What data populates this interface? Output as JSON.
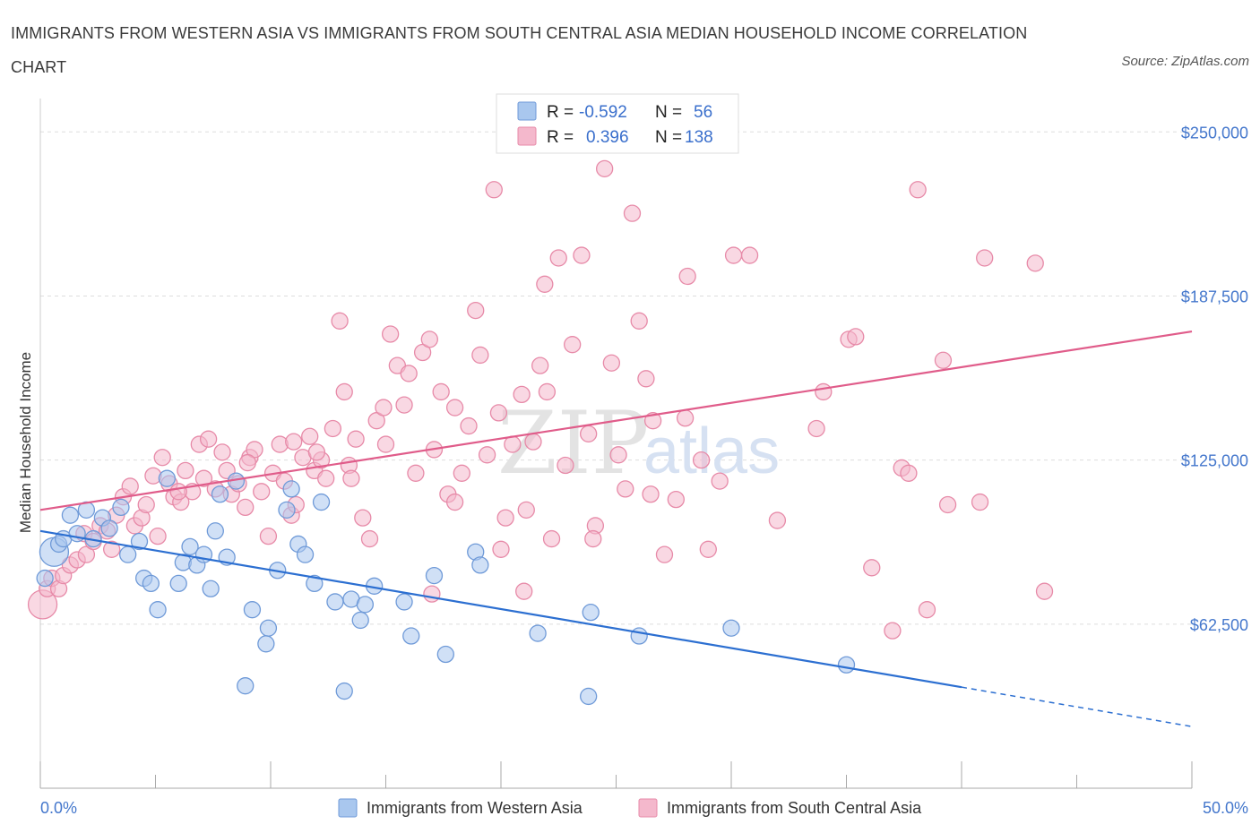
{
  "title": "IMMIGRANTS FROM WESTERN ASIA VS IMMIGRANTS FROM SOUTH CENTRAL ASIA MEDIAN HOUSEHOLD INCOME CORRELATION CHART",
  "source": "Source: ZipAtlas.com",
  "watermark": {
    "zip": "ZIP",
    "atlas": "atlas"
  },
  "colors": {
    "blue_fill": "#a9c7ee",
    "blue_stroke": "#6f9ad8",
    "blue_line": "#2c6fd1",
    "pink_fill": "#f4b8cc",
    "pink_stroke": "#e78aa8",
    "pink_line": "#e05c8a",
    "grid": "#dddddd",
    "axis_label": "#4477cc"
  },
  "legend": {
    "r_label": "R =",
    "n_label": "N =",
    "blue": {
      "r": "-0.592",
      "n": "56"
    },
    "pink": {
      "r": "0.396",
      "n": "138"
    }
  },
  "chart_data": {
    "type": "scatter",
    "title": "IMMIGRANTS FROM WESTERN ASIA VS IMMIGRANTS FROM SOUTH CENTRAL ASIA MEDIAN HOUSEHOLD INCOME CORRELATION CHART",
    "xlabel": "",
    "ylabel": "Median Household Income",
    "xlim": [
      0,
      50
    ],
    "ylim": [
      0,
      260000
    ],
    "x_tick_labels": [
      "0.0%",
      "50.0%"
    ],
    "y_ticks": [
      62500,
      125000,
      187500,
      250000
    ],
    "y_tick_labels": [
      "$62,500",
      "$125,000",
      "$187,500",
      "$250,000"
    ],
    "grid": true,
    "legend_position": "top-center",
    "series": [
      {
        "name": "Immigrants from Western Asia",
        "color": "#a9c7ee",
        "R": -0.592,
        "N": 56,
        "trend": {
          "x_start": 0,
          "y_start": 98000,
          "x_solid_end": 40,
          "y_solid_end": 38500,
          "x_end": 50,
          "y_end": 23500
        },
        "points": [
          [
            0.2,
            80000
          ],
          [
            0.6,
            90000
          ],
          [
            0.8,
            93000
          ],
          [
            1.0,
            95000
          ],
          [
            1.3,
            104000
          ],
          [
            1.6,
            97000
          ],
          [
            2.0,
            106000
          ],
          [
            2.3,
            95000
          ],
          [
            2.7,
            103000
          ],
          [
            3.0,
            99000
          ],
          [
            3.5,
            107000
          ],
          [
            3.8,
            89000
          ],
          [
            4.3,
            94000
          ],
          [
            4.5,
            80000
          ],
          [
            4.8,
            78000
          ],
          [
            5.1,
            68000
          ],
          [
            5.5,
            118000
          ],
          [
            6.0,
            78000
          ],
          [
            6.2,
            86000
          ],
          [
            6.5,
            92000
          ],
          [
            6.8,
            85000
          ],
          [
            7.1,
            89000
          ],
          [
            7.4,
            76000
          ],
          [
            7.6,
            98000
          ],
          [
            7.8,
            112000
          ],
          [
            8.1,
            88000
          ],
          [
            8.5,
            117000
          ],
          [
            8.9,
            39000
          ],
          [
            9.2,
            68000
          ],
          [
            9.8,
            55000
          ],
          [
            9.9,
            61000
          ],
          [
            10.3,
            83000
          ],
          [
            10.7,
            106000
          ],
          [
            10.9,
            114000
          ],
          [
            11.2,
            93000
          ],
          [
            11.5,
            89000
          ],
          [
            11.9,
            78000
          ],
          [
            12.2,
            109000
          ],
          [
            12.8,
            71000
          ],
          [
            13.2,
            37000
          ],
          [
            13.5,
            72000
          ],
          [
            13.9,
            64000
          ],
          [
            14.1,
            70000
          ],
          [
            14.5,
            77000
          ],
          [
            15.8,
            71000
          ],
          [
            16.1,
            58000
          ],
          [
            17.1,
            81000
          ],
          [
            17.6,
            51000
          ],
          [
            18.9,
            90000
          ],
          [
            19.1,
            85000
          ],
          [
            21.6,
            59000
          ],
          [
            23.8,
            35000
          ],
          [
            23.9,
            67000
          ],
          [
            26.0,
            58000
          ],
          [
            30.0,
            61000
          ],
          [
            35.0,
            47000
          ]
        ]
      },
      {
        "name": "Immigrants from South Central Asia",
        "color": "#f4b8cc",
        "R": 0.396,
        "N": 138,
        "trend": {
          "x_start": 0,
          "y_start": 106000,
          "x_end": 50,
          "y_end": 174000
        },
        "points": [
          [
            0.1,
            70000
          ],
          [
            0.3,
            76000
          ],
          [
            0.5,
            80000
          ],
          [
            0.8,
            76000
          ],
          [
            1.0,
            81000
          ],
          [
            1.3,
            85000
          ],
          [
            1.6,
            87000
          ],
          [
            1.9,
            97000
          ],
          [
            2.0,
            89000
          ],
          [
            2.3,
            94000
          ],
          [
            2.6,
            100000
          ],
          [
            2.9,
            98000
          ],
          [
            3.1,
            91000
          ],
          [
            3.3,
            104000
          ],
          [
            3.6,
            111000
          ],
          [
            3.9,
            115000
          ],
          [
            4.1,
            100000
          ],
          [
            4.4,
            103000
          ],
          [
            4.6,
            108000
          ],
          [
            4.9,
            119000
          ],
          [
            5.1,
            96000
          ],
          [
            5.3,
            126000
          ],
          [
            5.6,
            116000
          ],
          [
            5.8,
            111000
          ],
          [
            6.1,
            109000
          ],
          [
            6.3,
            121000
          ],
          [
            6.6,
            113000
          ],
          [
            6.9,
            131000
          ],
          [
            7.1,
            118000
          ],
          [
            7.3,
            133000
          ],
          [
            7.6,
            114000
          ],
          [
            7.9,
            128000
          ],
          [
            8.1,
            121000
          ],
          [
            8.3,
            112000
          ],
          [
            8.6,
            116000
          ],
          [
            8.9,
            107000
          ],
          [
            9.1,
            126000
          ],
          [
            9.3,
            129000
          ],
          [
            9.6,
            113000
          ],
          [
            9.9,
            96000
          ],
          [
            10.1,
            120000
          ],
          [
            10.4,
            131000
          ],
          [
            10.6,
            117000
          ],
          [
            10.9,
            104000
          ],
          [
            11.1,
            108000
          ],
          [
            11.4,
            126000
          ],
          [
            11.7,
            134000
          ],
          [
            11.9,
            121000
          ],
          [
            12.2,
            125000
          ],
          [
            12.4,
            118000
          ],
          [
            12.7,
            137000
          ],
          [
            13.0,
            178000
          ],
          [
            13.2,
            151000
          ],
          [
            13.4,
            123000
          ],
          [
            13.7,
            133000
          ],
          [
            14.0,
            103000
          ],
          [
            14.3,
            95000
          ],
          [
            14.6,
            140000
          ],
          [
            14.9,
            145000
          ],
          [
            15.2,
            173000
          ],
          [
            15.5,
            161000
          ],
          [
            15.8,
            146000
          ],
          [
            16.0,
            158000
          ],
          [
            16.3,
            120000
          ],
          [
            16.6,
            166000
          ],
          [
            16.9,
            171000
          ],
          [
            17.1,
            129000
          ],
          [
            17.4,
            151000
          ],
          [
            17.7,
            112000
          ],
          [
            18.0,
            145000
          ],
          [
            18.3,
            120000
          ],
          [
            18.6,
            138000
          ],
          [
            18.9,
            182000
          ],
          [
            19.1,
            165000
          ],
          [
            19.4,
            127000
          ],
          [
            19.7,
            228000
          ],
          [
            19.9,
            143000
          ],
          [
            20.2,
            103000
          ],
          [
            20.5,
            131000
          ],
          [
            20.9,
            150000
          ],
          [
            21.1,
            106000
          ],
          [
            21.4,
            132000
          ],
          [
            21.7,
            161000
          ],
          [
            21.9,
            192000
          ],
          [
            22.2,
            95000
          ],
          [
            22.5,
            202000
          ],
          [
            22.8,
            123000
          ],
          [
            23.1,
            169000
          ],
          [
            23.5,
            203000
          ],
          [
            23.8,
            135000
          ],
          [
            24.1,
            100000
          ],
          [
            24.5,
            236000
          ],
          [
            24.8,
            162000
          ],
          [
            25.1,
            127000
          ],
          [
            25.4,
            114000
          ],
          [
            25.7,
            219000
          ],
          [
            26.0,
            178000
          ],
          [
            26.3,
            156000
          ],
          [
            26.6,
            140000
          ],
          [
            27.1,
            89000
          ],
          [
            27.6,
            110000
          ],
          [
            28.1,
            195000
          ],
          [
            28.7,
            125000
          ],
          [
            29.5,
            117000
          ],
          [
            30.1,
            203000
          ],
          [
            30.8,
            203000
          ],
          [
            33.7,
            137000
          ],
          [
            34.0,
            151000
          ],
          [
            35.1,
            171000
          ],
          [
            35.4,
            172000
          ],
          [
            36.1,
            84000
          ],
          [
            37.0,
            60000
          ],
          [
            37.4,
            122000
          ],
          [
            37.7,
            120000
          ],
          [
            38.1,
            228000
          ],
          [
            38.5,
            68000
          ],
          [
            39.2,
            163000
          ],
          [
            39.4,
            108000
          ],
          [
            40.8,
            109000
          ],
          [
            41.0,
            202000
          ],
          [
            43.2,
            200000
          ],
          [
            43.6,
            75000
          ],
          [
            6.0,
            113000
          ],
          [
            12.0,
            128000
          ],
          [
            15.0,
            131000
          ],
          [
            22.0,
            151000
          ],
          [
            28.0,
            141000
          ],
          [
            32.0,
            102000
          ],
          [
            9.0,
            124000
          ],
          [
            11.0,
            132000
          ],
          [
            13.5,
            118000
          ],
          [
            18.0,
            109000
          ],
          [
            20.0,
            91000
          ],
          [
            24.0,
            95000
          ],
          [
            26.5,
            112000
          ],
          [
            29.0,
            91000
          ],
          [
            17.0,
            74000
          ],
          [
            21.0,
            75000
          ]
        ]
      }
    ]
  },
  "bottom_legend": {
    "blue_label": "Immigrants from Western Asia",
    "pink_label": "Immigrants from South Central Asia"
  }
}
